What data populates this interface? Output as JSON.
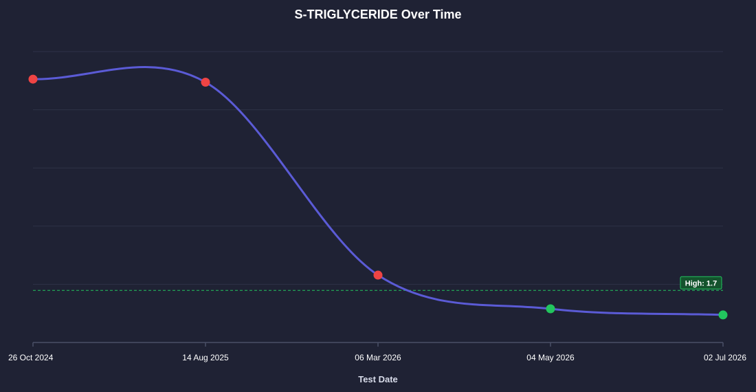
{
  "chart_data": {
    "type": "line",
    "title": "S-TRIGLYCERIDE Over Time",
    "xlabel": "Test Date",
    "ylabel": "",
    "x": [
      "26 Oct 2024",
      "14 Aug 2025",
      "06 Mar 2026",
      "04 May 2026",
      "02 Jul 2026"
    ],
    "series": [
      {
        "values": [
          8.6,
          8.5,
          2.2,
          1.1,
          0.9
        ]
      }
    ],
    "ylim": [
      0,
      9.5
    ],
    "grid_values": [
      1.9,
      3.8,
      5.7,
      7.6,
      9.5
    ],
    "reference_line": {
      "label": "High: 1.7",
      "value": 1.7,
      "color": "#22c55e"
    },
    "point_colors": [
      "#ef4444",
      "#ef4444",
      "#ef4444",
      "#22c55e",
      "#22c55e"
    ],
    "line_color": "#5b5bd6",
    "grid": true,
    "show_y_tick_labels": false
  }
}
